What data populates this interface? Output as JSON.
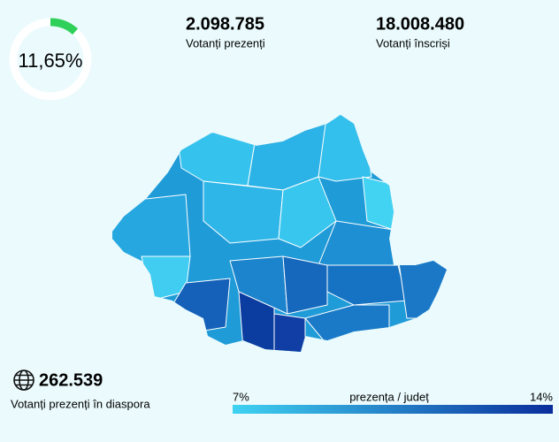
{
  "turnout": {
    "label": "11,65%",
    "value": 11.65
  },
  "stats": [
    {
      "value": "2.098.785",
      "label": "Votanți prezenți"
    },
    {
      "value": "18.008.480",
      "label": "Votanți înscriși"
    }
  ],
  "diaspora": {
    "value": "262.539",
    "label": "Votanți prezenți în diaspora"
  },
  "legend": {
    "min": "7%",
    "title": "prezența / județ",
    "max": "14%"
  }
}
